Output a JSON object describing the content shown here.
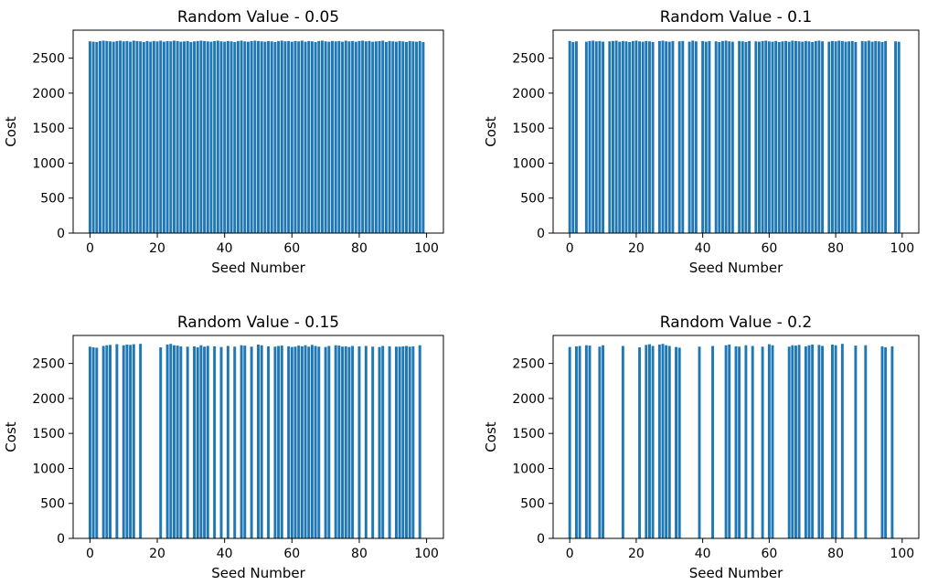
{
  "chart_data": [
    {
      "type": "bar",
      "title": "Random Value - 0.05",
      "xlabel": "Seed Number",
      "ylabel": "Cost",
      "xlim": [
        -5,
        105
      ],
      "ylim": [
        0,
        2900
      ],
      "xticks": [
        0,
        20,
        40,
        60,
        80,
        100
      ],
      "yticks": [
        0,
        500,
        1000,
        1500,
        2000,
        2500
      ],
      "color": "#1f77b4",
      "x": [
        0,
        1,
        2,
        3,
        4,
        5,
        6,
        7,
        8,
        9,
        10,
        11,
        12,
        13,
        14,
        15,
        16,
        17,
        18,
        19,
        20,
        21,
        22,
        23,
        24,
        25,
        26,
        27,
        28,
        29,
        30,
        31,
        32,
        33,
        34,
        35,
        36,
        37,
        38,
        39,
        40,
        41,
        42,
        43,
        44,
        45,
        46,
        47,
        48,
        49,
        50,
        51,
        52,
        53,
        54,
        55,
        56,
        57,
        58,
        59,
        60,
        61,
        62,
        63,
        64,
        65,
        66,
        67,
        68,
        69,
        70,
        71,
        72,
        73,
        74,
        75,
        76,
        77,
        78,
        79,
        80,
        81,
        82,
        83,
        84,
        85,
        86,
        87,
        88,
        89,
        90,
        91,
        92,
        93,
        94,
        95,
        96,
        97,
        98,
        99
      ],
      "values": [
        2740,
        2735,
        2730,
        2745,
        2750,
        2745,
        2740,
        2735,
        2745,
        2750,
        2740,
        2745,
        2735,
        2750,
        2745,
        2740,
        2730,
        2745,
        2735,
        2745,
        2740,
        2750,
        2735,
        2745,
        2740,
        2750,
        2745,
        2735,
        2740,
        2745,
        2730,
        2740,
        2745,
        2750,
        2745,
        2740,
        2735,
        2745,
        2750,
        2740,
        2735,
        2745,
        2740,
        2730,
        2745,
        2750,
        2740,
        2735,
        2745,
        2750,
        2745,
        2740,
        2735,
        2745,
        2740,
        2730,
        2745,
        2750,
        2740,
        2745,
        2735,
        2745,
        2740,
        2750,
        2735,
        2745,
        2740,
        2730,
        2745,
        2750,
        2740,
        2735,
        2745,
        2740,
        2745,
        2735,
        2750,
        2740,
        2745,
        2735,
        2745,
        2750,
        2740,
        2745,
        2735,
        2740,
        2745,
        2750,
        2730,
        2745,
        2740,
        2735,
        2745,
        2740,
        2730,
        2745,
        2740,
        2735,
        2745,
        2730
      ]
    },
    {
      "type": "bar",
      "title": "Random Value - 0.1",
      "xlabel": "Seed Number",
      "ylabel": "Cost",
      "xlim": [
        -5,
        105
      ],
      "ylim": [
        0,
        2900
      ],
      "xticks": [
        0,
        20,
        40,
        60,
        80,
        100
      ],
      "yticks": [
        0,
        500,
        1000,
        1500,
        2000,
        2500
      ],
      "color": "#1f77b4",
      "x": [
        0,
        1,
        2,
        5,
        6,
        7,
        8,
        9,
        10,
        12,
        13,
        14,
        15,
        16,
        17,
        18,
        19,
        20,
        21,
        22,
        23,
        24,
        25,
        27,
        28,
        29,
        30,
        31,
        33,
        34,
        36,
        37,
        38,
        40,
        41,
        42,
        44,
        45,
        46,
        47,
        48,
        49,
        51,
        52,
        53,
        54,
        56,
        57,
        58,
        59,
        60,
        61,
        62,
        63,
        64,
        65,
        66,
        67,
        68,
        69,
        70,
        71,
        72,
        73,
        74,
        75,
        76,
        78,
        79,
        80,
        81,
        82,
        83,
        84,
        85,
        86,
        88,
        89,
        90,
        91,
        92,
        93,
        94,
        95,
        98,
        99
      ],
      "values": [
        2745,
        2730,
        2740,
        2735,
        2745,
        2750,
        2740,
        2745,
        2735,
        2740,
        2745,
        2750,
        2735,
        2745,
        2740,
        2730,
        2745,
        2750,
        2740,
        2735,
        2745,
        2740,
        2730,
        2745,
        2750,
        2740,
        2735,
        2745,
        2740,
        2745,
        2735,
        2750,
        2740,
        2745,
        2735,
        2745,
        2740,
        2730,
        2745,
        2750,
        2740,
        2735,
        2745,
        2740,
        2730,
        2745,
        2740,
        2735,
        2745,
        2750,
        2740,
        2735,
        2745,
        2730,
        2740,
        2745,
        2735,
        2750,
        2745,
        2740,
        2735,
        2745,
        2740,
        2730,
        2745,
        2750,
        2740,
        2735,
        2745,
        2740,
        2750,
        2745,
        2735,
        2740,
        2745,
        2730,
        2745,
        2740,
        2750,
        2735,
        2745,
        2740,
        2730,
        2745,
        2740,
        2735
      ]
    },
    {
      "type": "bar",
      "title": "Random Value - 0.15",
      "xlabel": "Seed Number",
      "ylabel": "Cost",
      "xlim": [
        -5,
        105
      ],
      "ylim": [
        0,
        2900
      ],
      "xticks": [
        0,
        20,
        40,
        60,
        80,
        100
      ],
      "yticks": [
        0,
        500,
        1000,
        1500,
        2000,
        2500
      ],
      "color": "#1f77b4",
      "x": [
        0,
        1,
        2,
        4,
        5,
        6,
        8,
        10,
        11,
        12,
        13,
        15,
        21,
        23,
        24,
        25,
        26,
        27,
        29,
        31,
        32,
        33,
        34,
        35,
        37,
        39,
        41,
        43,
        45,
        46,
        48,
        50,
        51,
        53,
        55,
        56,
        57,
        59,
        60,
        61,
        62,
        63,
        64,
        65,
        66,
        67,
        68,
        70,
        71,
        73,
        74,
        75,
        76,
        77,
        78,
        80,
        82,
        84,
        86,
        87,
        89,
        91,
        92,
        93,
        94,
        95,
        96,
        98
      ],
      "values": [
        2740,
        2730,
        2725,
        2750,
        2760,
        2765,
        2775,
        2760,
        2770,
        2765,
        2775,
        2780,
        2730,
        2770,
        2780,
        2760,
        2755,
        2745,
        2740,
        2745,
        2730,
        2760,
        2740,
        2750,
        2745,
        2735,
        2750,
        2740,
        2760,
        2755,
        2740,
        2770,
        2760,
        2745,
        2740,
        2750,
        2755,
        2745,
        2735,
        2740,
        2755,
        2745,
        2760,
        2740,
        2765,
        2750,
        2740,
        2735,
        2750,
        2760,
        2755,
        2740,
        2745,
        2735,
        2750,
        2745,
        2750,
        2740,
        2735,
        2750,
        2745,
        2740,
        2740,
        2745,
        2750,
        2740,
        2745,
        2760
      ]
    },
    {
      "type": "bar",
      "title": "Random Value - 0.2",
      "xlabel": "Seed Number",
      "ylabel": "Cost",
      "xlim": [
        -5,
        105
      ],
      "ylim": [
        0,
        2900
      ],
      "xticks": [
        0,
        20,
        40,
        60,
        80,
        100
      ],
      "yticks": [
        0,
        500,
        1000,
        1500,
        2000,
        2500
      ],
      "color": "#1f77b4",
      "x": [
        0,
        2,
        3,
        5,
        6,
        9,
        10,
        16,
        21,
        23,
        24,
        25,
        27,
        28,
        29,
        30,
        32,
        33,
        39,
        43,
        47,
        48,
        50,
        51,
        53,
        55,
        58,
        60,
        61,
        66,
        67,
        68,
        69,
        71,
        72,
        73,
        75,
        76,
        79,
        80,
        82,
        86,
        89,
        94,
        95,
        97
      ],
      "values": [
        2735,
        2745,
        2750,
        2760,
        2755,
        2740,
        2760,
        2750,
        2730,
        2765,
        2775,
        2750,
        2770,
        2780,
        2760,
        2750,
        2735,
        2725,
        2740,
        2750,
        2760,
        2770,
        2745,
        2740,
        2760,
        2750,
        2740,
        2775,
        2760,
        2740,
        2760,
        2755,
        2765,
        2745,
        2760,
        2770,
        2765,
        2750,
        2770,
        2760,
        2780,
        2755,
        2760,
        2745,
        2730,
        2745
      ]
    }
  ]
}
